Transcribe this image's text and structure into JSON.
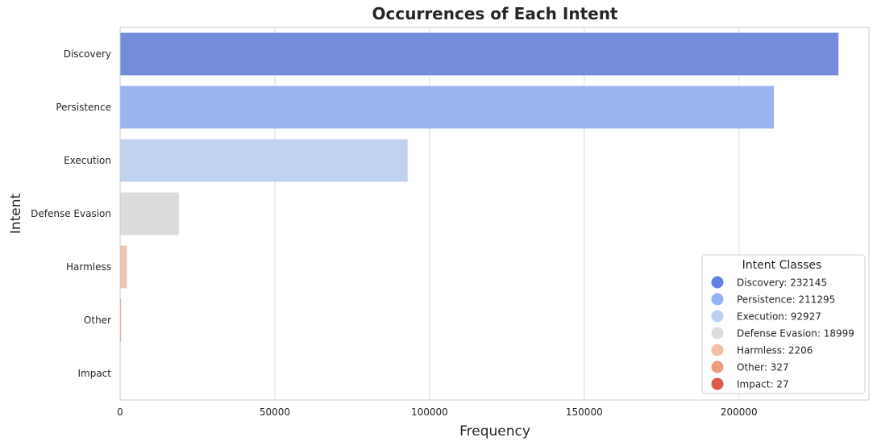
{
  "chart_data": {
    "type": "bar",
    "orientation": "horizontal",
    "title": "Occurrences of Each Intent",
    "xlabel": "Frequency",
    "ylabel": "Intent",
    "xlim": [
      0,
      242000
    ],
    "xticks": [
      0,
      50000,
      100000,
      150000,
      200000
    ],
    "xtick_labels": [
      "0",
      "50000",
      "100000",
      "150000",
      "200000"
    ],
    "grid": "vertical",
    "categories": [
      "Discovery",
      "Persistence",
      "Execution",
      "Defense Evasion",
      "Harmless",
      "Other",
      "Impact"
    ],
    "values": [
      232145,
      211295,
      92927,
      18999,
      2206,
      327,
      27
    ],
    "bar_colors": [
      "#738ddb",
      "#9bb5f1",
      "#c1d2f0",
      "#dcdcdc",
      "#efc3b3",
      "#f0a58a",
      "#dd5f4b"
    ],
    "legend": {
      "title": "Intent Classes",
      "placement": "lower-right",
      "entries": [
        "Discovery: 232145",
        "Persistence: 211295",
        "Execution: 92927",
        "Defense Evasion: 18999",
        "Harmless: 2206",
        "Other: 327",
        "Impact: 27"
      ],
      "marker_colors": [
        "#6180e4",
        "#91b2f7",
        "#bcd0f4",
        "#dcdcdc",
        "#f3bfa6",
        "#f09b7a",
        "#dc5a48"
      ]
    }
  }
}
